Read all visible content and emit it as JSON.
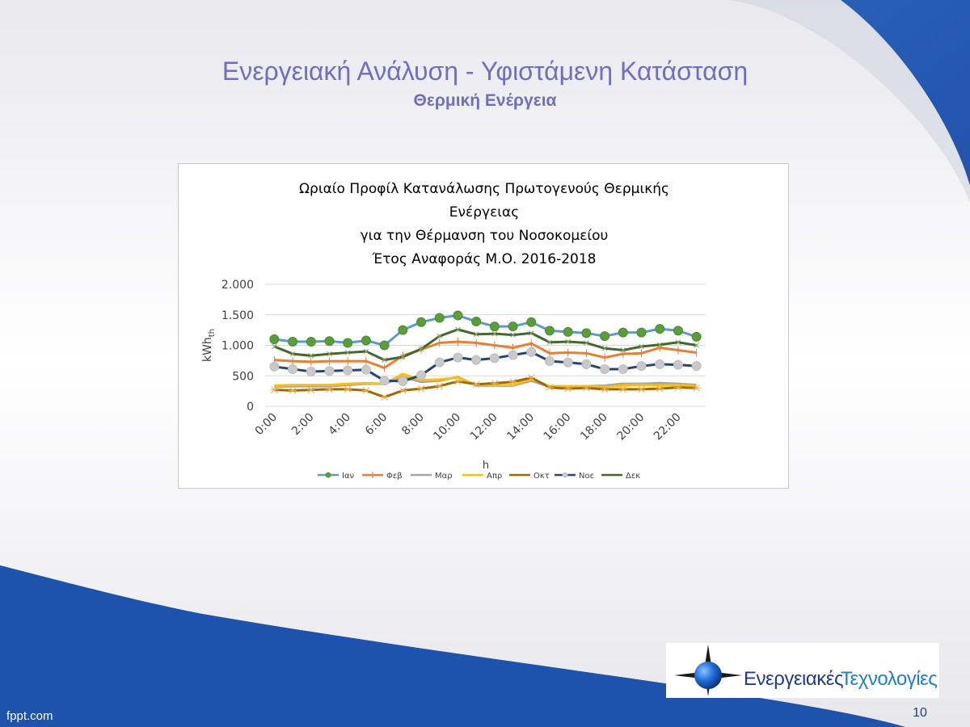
{
  "slide": {
    "title": "Ενεργειακή Ανάλυση - Υφιστάμενη Κατάσταση",
    "subtitle": "Θερμική Ενέργεια",
    "footer_brand": "fppt.com",
    "page_number": "10",
    "logo_text_1": "Ενεργειακές",
    "logo_text_2": "Τεχνολογίες",
    "colors": {
      "title": "#6f6fbf",
      "background_blue": "#1f56b0",
      "swoosh_white": "#ffffff"
    }
  },
  "chart_data": {
    "type": "line",
    "title_lines": [
      "Ωριαίο Προφίλ Κατανάλωσης Πρωτογενούς Θερμικής",
      "Ενέργειας",
      "για την Θέρμανση του Νοσοκομείου",
      "Έτος Αναφοράς Μ.Ο. 2016-2018"
    ],
    "xlabel": "h",
    "ylabel": "kWh",
    "ylabel_sub": "th",
    "ylim": [
      0,
      2000
    ],
    "yticks": [
      0,
      500,
      1000,
      1500,
      2000
    ],
    "ytick_labels": [
      "0",
      "500",
      "1.000",
      "1.500",
      "2.000"
    ],
    "x": [
      "0:00",
      "1:00",
      "2:00",
      "3:00",
      "4:00",
      "5:00",
      "6:00",
      "7:00",
      "8:00",
      "9:00",
      "10:00",
      "11:00",
      "12:00",
      "13:00",
      "14:00",
      "15:00",
      "16:00",
      "17:00",
      "18:00",
      "19:00",
      "20:00",
      "21:00",
      "22:00",
      "23:00"
    ],
    "xtick_labels": [
      "0:00",
      "2:00",
      "4:00",
      "6:00",
      "8:00",
      "10:00",
      "12:00",
      "14:00",
      "16:00",
      "18:00",
      "20:00",
      "22:00"
    ],
    "grid": true,
    "legend_position": "bottom",
    "series": [
      {
        "name": "Ιαν",
        "color": "#5b9bd5",
        "marker": "circle-green",
        "values": [
          1100,
          1060,
          1060,
          1070,
          1040,
          1080,
          1000,
          1250,
          1380,
          1450,
          1490,
          1390,
          1310,
          1310,
          1380,
          1240,
          1220,
          1200,
          1150,
          1210,
          1210,
          1270,
          1240,
          1140
        ]
      },
      {
        "name": "Φεβ",
        "color": "#ed7d31",
        "marker": "plus",
        "values": [
          760,
          740,
          730,
          740,
          740,
          740,
          630,
          830,
          930,
          1040,
          1060,
          1040,
          1000,
          960,
          1030,
          870,
          880,
          870,
          800,
          860,
          870,
          960,
          920,
          880
        ]
      },
      {
        "name": "Μαρ",
        "color": "#a5a5a5",
        "marker": "none",
        "values": [
          320,
          330,
          330,
          330,
          350,
          370,
          370,
          480,
          400,
          420,
          480,
          340,
          340,
          340,
          420,
          320,
          310,
          330,
          340,
          370,
          370,
          380,
          370,
          350
        ]
      },
      {
        "name": "Απρ",
        "color": "#ffc000",
        "marker": "none",
        "values": [
          340,
          350,
          350,
          350,
          370,
          380,
          370,
          530,
          430,
          440,
          470,
          350,
          350,
          350,
          450,
          330,
          330,
          330,
          320,
          340,
          350,
          340,
          350,
          330
        ]
      },
      {
        "name": "Οκτ",
        "color": "#9e6a00",
        "marker": "star",
        "values": [
          270,
          260,
          270,
          280,
          280,
          260,
          150,
          260,
          290,
          330,
          410,
          360,
          380,
          400,
          470,
          310,
          290,
          300,
          280,
          280,
          280,
          290,
          310,
          300
        ]
      },
      {
        "name": "Νοε",
        "color": "#264478",
        "marker": "circle-grey",
        "values": [
          650,
          610,
          570,
          580,
          590,
          600,
          420,
          410,
          510,
          720,
          800,
          760,
          790,
          840,
          890,
          740,
          720,
          690,
          610,
          610,
          660,
          690,
          680,
          660
        ]
      },
      {
        "name": "Δεκ",
        "color": "#43682b",
        "marker": "cross",
        "values": [
          980,
          860,
          830,
          860,
          880,
          900,
          760,
          810,
          940,
          1150,
          1260,
          1180,
          1190,
          1170,
          1200,
          1050,
          1060,
          1040,
          950,
          920,
          980,
          1010,
          1050,
          1000
        ]
      }
    ]
  }
}
